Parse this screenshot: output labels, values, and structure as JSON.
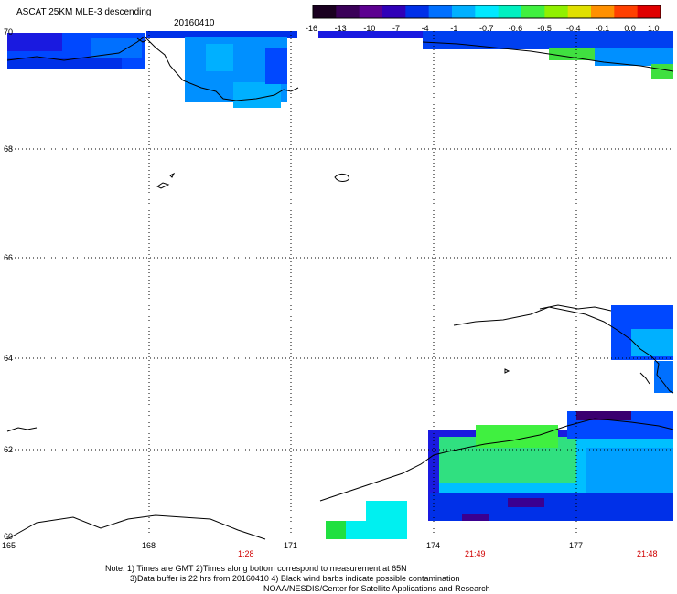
{
  "header": {
    "title": "ASCAT 25KM MLE-3 descending",
    "date": "20160410"
  },
  "colorbar": {
    "labels": [
      "-16",
      "-13",
      "-10",
      "-7",
      "-4",
      "-1",
      "-0.7",
      "-0.6",
      "-0.5",
      "-0.4",
      "-0.1",
      "0.0",
      "1.0"
    ],
    "colors": [
      "#1a0020",
      "#3a0058",
      "#5c0090",
      "#3000b8",
      "#0030e8",
      "#0070ff",
      "#00b0ff",
      "#00e8ff",
      "#00f0c0",
      "#40f040",
      "#90f000",
      "#e0e000",
      "#ff9000",
      "#ff4000",
      "#e00000"
    ]
  },
  "map": {
    "lat_labels": [
      "70",
      "68",
      "66",
      "64",
      "62",
      "60"
    ],
    "lon_labels": [
      "165",
      "168",
      "171",
      "174",
      "177"
    ],
    "times": [
      "1:28",
      "21:49",
      "21:48"
    ]
  },
  "footer": {
    "line1": "Note: 1) Times are GMT 2)Times along bottom correspond to measurement at 65N",
    "line2": "3)Data buffer is 22 hrs from 20160410 4) Black wind barbs indicate possible contamination",
    "line3": "NOAA/NESDIS/Center for Satellite Applications and Research"
  },
  "palette": {
    "deep_blue": "#1a1ae0",
    "blue": "#0048ff",
    "mid_blue": "#0090ff",
    "cyan_blue": "#00c0ff",
    "cyan": "#00f0f0",
    "green": "#20e040",
    "purple": "#3a0070"
  }
}
